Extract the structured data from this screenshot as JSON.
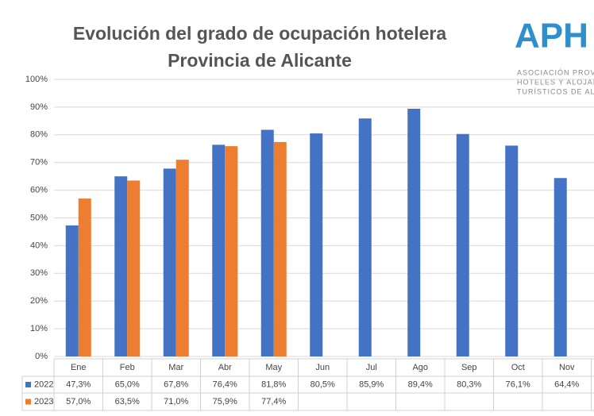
{
  "chart_data": {
    "type": "bar",
    "title": [
      "Evolución del grado de ocupación hotelera",
      "Provincia de Alicante"
    ],
    "logo": {
      "mark": "APH",
      "lines": [
        "ASOCIACIÓN PROVIN",
        "HOTELES Y ALOJAM",
        "TURÍSTICOS DE AL"
      ]
    },
    "categories": [
      "Ene",
      "Feb",
      "Mar",
      "Abr",
      "May",
      "Jun",
      "Jul",
      "Ago",
      "Sep",
      "Oct",
      "Nov"
    ],
    "series": [
      {
        "name": "2022",
        "color": "#4472c4",
        "values": [
          47.3,
          65.0,
          67.8,
          76.4,
          81.8,
          80.5,
          85.9,
          89.4,
          80.3,
          76.1,
          64.4
        ],
        "value_labels": [
          "47,3%",
          "65,0%",
          "67,8%",
          "76,4%",
          "81,8%",
          "80,5%",
          "85,9%",
          "89,4%",
          "80,3%",
          "76,1%",
          "64,4%"
        ]
      },
      {
        "name": "2023",
        "color": "#ed7d31",
        "values": [
          57.0,
          63.5,
          71.0,
          75.9,
          77.4,
          null,
          null,
          null,
          null,
          null,
          null
        ],
        "value_labels": [
          "57,0%",
          "63,5%",
          "71,0%",
          "75,9%",
          "77,4%",
          null,
          null,
          null,
          null,
          null,
          null
        ]
      }
    ],
    "ylim": [
      0,
      100
    ],
    "yticks": [
      {
        "value": 0,
        "label": "0%"
      },
      {
        "value": 10,
        "label": "10%"
      },
      {
        "value": 20,
        "label": "20%"
      },
      {
        "value": 30,
        "label": "30%"
      },
      {
        "value": 40,
        "label": "40%"
      },
      {
        "value": 50,
        "label": "50%"
      },
      {
        "value": 60,
        "label": "60%"
      },
      {
        "value": 70,
        "label": "70%"
      },
      {
        "value": 80,
        "label": "80%"
      },
      {
        "value": 90,
        "label": "90%"
      },
      {
        "value": 100,
        "label": "100%"
      }
    ],
    "grid": true
  }
}
